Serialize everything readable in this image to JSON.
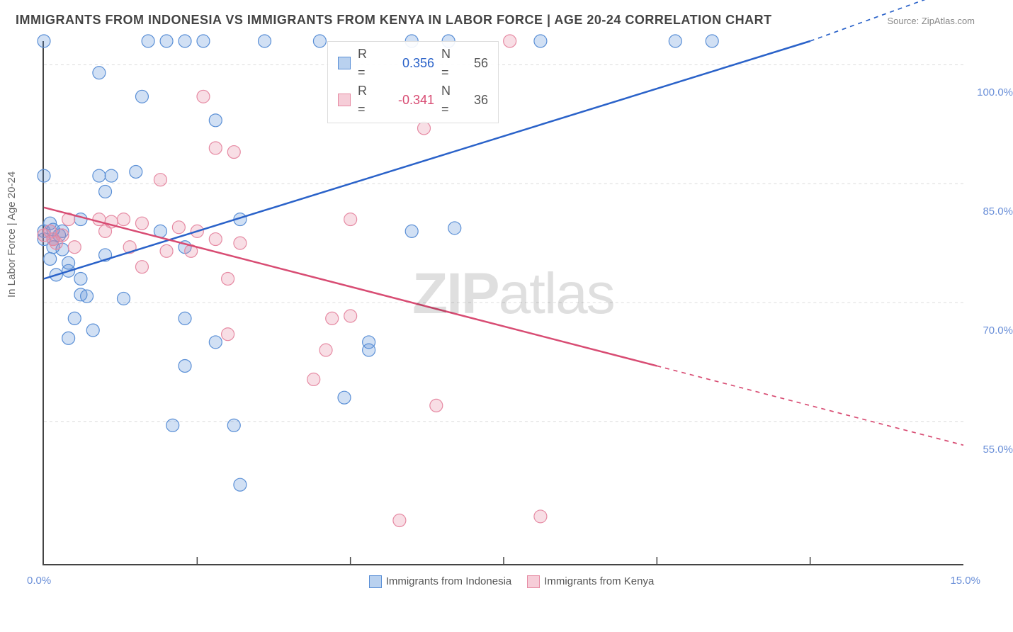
{
  "title": "IMMIGRANTS FROM INDONESIA VS IMMIGRANTS FROM KENYA IN LABOR FORCE | AGE 20-24 CORRELATION CHART",
  "source": "Source: ZipAtlas.com",
  "ylabel": "In Labor Force | Age 20-24",
  "watermark_bold": "ZIP",
  "watermark_rest": "atlas",
  "chart": {
    "type": "scatter-with-regression",
    "background_color": "#ffffff",
    "grid_color": "#dcdcdc",
    "axis_color": "#444444",
    "marker_radius": 9,
    "marker_stroke_width": 1.2,
    "fill_opacity": 0.28,
    "line_width": 2.5,
    "x": {
      "min": 0.0,
      "max": 15.0,
      "ticks_minor": [
        2.5,
        5.0,
        7.5,
        10.0,
        12.5
      ],
      "left_label": "0.0%",
      "right_label": "15.0%"
    },
    "y": {
      "min": 37.0,
      "max": 103.0,
      "gridlines": [
        55.0,
        70.0,
        85.0,
        100.0
      ],
      "tick_labels": [
        "55.0%",
        "70.0%",
        "85.0%",
        "100.0%"
      ]
    },
    "series": [
      {
        "key": "indonesia",
        "label": "Immigrants from Indonesia",
        "color": "#5a8fd6",
        "line_color": "#2a62c9",
        "r_value": "0.356",
        "r_color": "#2a62c9",
        "n_value": "56",
        "trend": {
          "x1": 0.0,
          "y1": 73.0,
          "x2": 12.5,
          "y2": 103.0,
          "extend_x": 15.0,
          "extend_y": 110.0
        },
        "points": [
          [
            0.0,
            103.0
          ],
          [
            1.7,
            103.0
          ],
          [
            2.0,
            103.0
          ],
          [
            2.3,
            103.0
          ],
          [
            2.6,
            103.0
          ],
          [
            3.6,
            103.0
          ],
          [
            4.5,
            103.0
          ],
          [
            6.0,
            103.0
          ],
          [
            6.6,
            103.0
          ],
          [
            8.1,
            103.0
          ],
          [
            10.3,
            103.0
          ],
          [
            10.9,
            103.0
          ],
          [
            0.9,
            99.0
          ],
          [
            1.6,
            96.0
          ],
          [
            2.8,
            93.0
          ],
          [
            0.0,
            86.0
          ],
          [
            0.9,
            86.0
          ],
          [
            1.1,
            86.0
          ],
          [
            1.5,
            86.5
          ],
          [
            1.0,
            84.0
          ],
          [
            0.1,
            80.0
          ],
          [
            0.6,
            80.5
          ],
          [
            0.3,
            79.0
          ],
          [
            3.2,
            80.5
          ],
          [
            1.9,
            79.0
          ],
          [
            6.0,
            79.0
          ],
          [
            6.7,
            79.4
          ],
          [
            0.15,
            78.0
          ],
          [
            0.15,
            77.0
          ],
          [
            0.3,
            76.7
          ],
          [
            1.0,
            76.0
          ],
          [
            2.3,
            77.0
          ],
          [
            0.1,
            75.5
          ],
          [
            0.4,
            75.0
          ],
          [
            0.4,
            74.0
          ],
          [
            0.2,
            73.5
          ],
          [
            0.6,
            73.0
          ],
          [
            0.6,
            71.0
          ],
          [
            0.7,
            70.8
          ],
          [
            1.3,
            70.5
          ],
          [
            0.5,
            68.0
          ],
          [
            2.3,
            68.0
          ],
          [
            0.8,
            66.5
          ],
          [
            0.4,
            65.5
          ],
          [
            2.8,
            65.0
          ],
          [
            5.3,
            65.0
          ],
          [
            2.3,
            62.0
          ],
          [
            2.1,
            54.5
          ],
          [
            3.1,
            54.5
          ],
          [
            3.2,
            47.0
          ],
          [
            4.9,
            58.0
          ],
          [
            5.3,
            64.0
          ],
          [
            0.0,
            79.0
          ],
          [
            0.0,
            78.0
          ],
          [
            0.15,
            79.2
          ],
          [
            0.25,
            78.5
          ]
        ]
      },
      {
        "key": "kenya",
        "label": "Immigrants from Kenya",
        "color": "#e68aa3",
        "line_color": "#d84c73",
        "r_value": "-0.341",
        "r_color": "#d84c73",
        "n_value": "36",
        "trend": {
          "x1": 0.0,
          "y1": 82.0,
          "x2": 10.0,
          "y2": 62.0,
          "extend_x": 15.0,
          "extend_y": 52.0
        },
        "points": [
          [
            7.6,
            103.0
          ],
          [
            2.6,
            96.0
          ],
          [
            6.2,
            92.0
          ],
          [
            2.8,
            89.5
          ],
          [
            3.1,
            89.0
          ],
          [
            1.9,
            85.5
          ],
          [
            5.0,
            80.5
          ],
          [
            0.4,
            80.5
          ],
          [
            0.9,
            80.5
          ],
          [
            1.1,
            80.2
          ],
          [
            1.3,
            80.5
          ],
          [
            1.6,
            80.0
          ],
          [
            0.1,
            79.0
          ],
          [
            0.15,
            78.0
          ],
          [
            0.3,
            78.5
          ],
          [
            1.0,
            79.0
          ],
          [
            2.2,
            79.5
          ],
          [
            2.5,
            79.0
          ],
          [
            2.8,
            78.0
          ],
          [
            0.5,
            77.0
          ],
          [
            1.4,
            77.0
          ],
          [
            2.0,
            76.5
          ],
          [
            2.4,
            76.5
          ],
          [
            3.2,
            77.5
          ],
          [
            1.6,
            74.5
          ],
          [
            3.0,
            73.0
          ],
          [
            4.7,
            68.0
          ],
          [
            5.0,
            68.3
          ],
          [
            3.0,
            66.0
          ],
          [
            4.6,
            64.0
          ],
          [
            4.4,
            60.3
          ],
          [
            6.4,
            57.0
          ],
          [
            5.8,
            42.5
          ],
          [
            8.1,
            43.0
          ],
          [
            0.0,
            78.5
          ],
          [
            0.2,
            77.5
          ]
        ]
      }
    ]
  },
  "legend_bottom": [
    {
      "label": "Immigrants from Indonesia",
      "fill": "#b9d1ef",
      "stroke": "#5a8fd6"
    },
    {
      "label": "Immigrants from Kenya",
      "fill": "#f6cdd8",
      "stroke": "#e68aa3"
    }
  ]
}
